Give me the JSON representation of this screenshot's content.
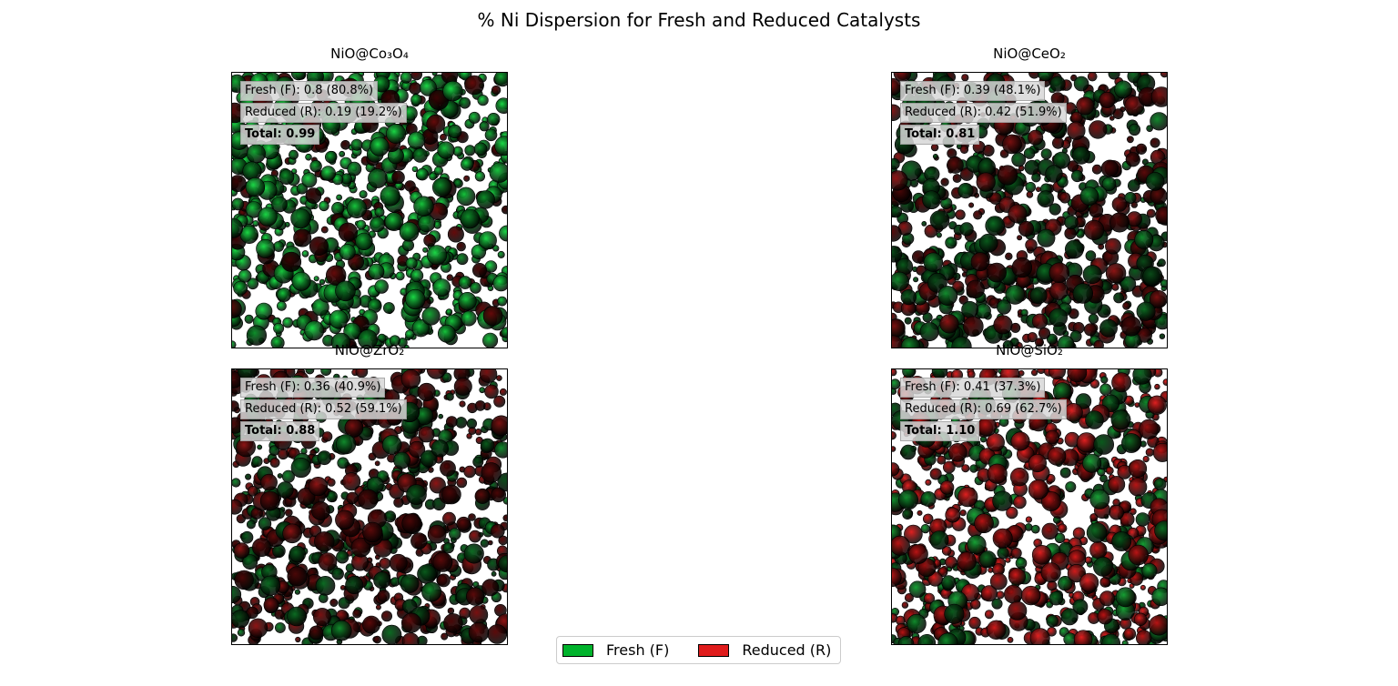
{
  "figure": {
    "title": "% Ni Dispersion for Fresh and Reduced Catalysts"
  },
  "colors": {
    "fresh": "#00b32c",
    "reduced": "#e01c1c"
  },
  "chart_data": [
    {
      "type": "scatter",
      "title": "NiO@Co₃O₄",
      "xlabel": "",
      "ylabel": "",
      "series": [
        {
          "name": "Fresh (F)",
          "value": 0.8,
          "percent": 80.8
        },
        {
          "name": "Reduced (R)",
          "value": 0.19,
          "percent": 19.2
        }
      ],
      "total": 0.99,
      "annotations": [
        "Fresh (F): 0.8 (80.8%)",
        "Reduced (R): 0.19 (19.2%)",
        "Total: 0.99"
      ],
      "shade": "dark"
    },
    {
      "type": "scatter",
      "title": "NiO@CeO₂",
      "xlabel": "",
      "ylabel": "",
      "series": [
        {
          "name": "Fresh (F)",
          "value": 0.39,
          "percent": 48.1
        },
        {
          "name": "Reduced (R)",
          "value": 0.42,
          "percent": 51.9
        }
      ],
      "total": 0.81,
      "annotations": [
        "Fresh (F): 0.39 (48.1%)",
        "Reduced (R): 0.42 (51.9%)",
        "Total: 0.81"
      ],
      "shade": "dark"
    },
    {
      "type": "scatter",
      "title": "NiO@ZrO₂",
      "xlabel": "",
      "ylabel": "",
      "series": [
        {
          "name": "Fresh (F)",
          "value": 0.36,
          "percent": 40.9
        },
        {
          "name": "Reduced (R)",
          "value": 0.52,
          "percent": 59.1
        }
      ],
      "total": 0.88,
      "annotations": [
        "Fresh (F): 0.36 (40.9%)",
        "Reduced (R): 0.52 (59.1%)",
        "Total: 0.88"
      ],
      "shade": "dark"
    },
    {
      "type": "scatter",
      "title": "NiO@SiO₂",
      "xlabel": "",
      "ylabel": "",
      "series": [
        {
          "name": "Fresh (F)",
          "value": 0.41,
          "percent": 37.3
        },
        {
          "name": "Reduced (R)",
          "value": 0.69,
          "percent": 62.7
        }
      ],
      "total": 1.1,
      "annotations": [
        "Fresh (F): 0.41 (37.3%)",
        "Reduced (R): 0.69 (62.7%)",
        "Total: 1.10"
      ],
      "shade": "bright"
    }
  ],
  "legend": {
    "placement": "bottom-center",
    "items": [
      {
        "label": "Fresh (F)",
        "color": "#00b32c"
      },
      {
        "label": "Reduced (R)",
        "color": "#e01c1c"
      }
    ]
  }
}
